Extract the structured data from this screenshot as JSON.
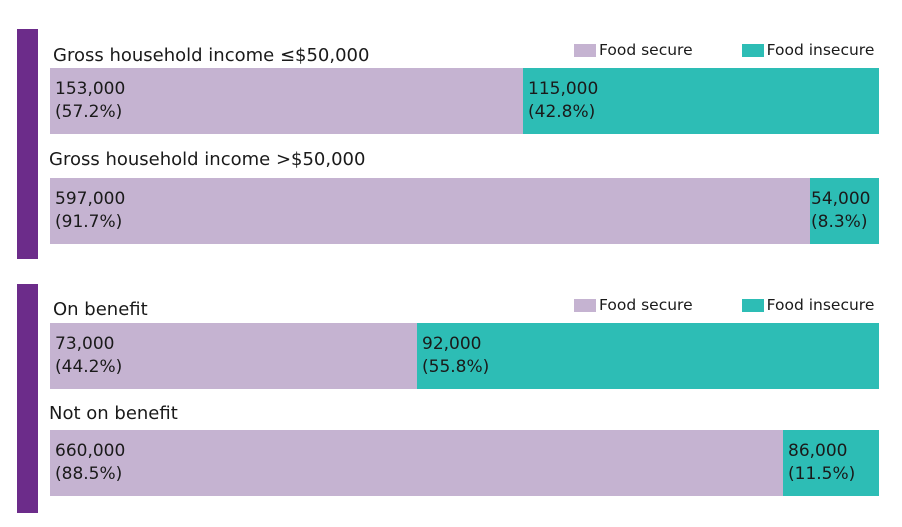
{
  "colors": {
    "accent": "#6c2c8a",
    "food_secure": "#c5b3d1",
    "food_insecure": "#2dbdb5"
  },
  "chart_data": [
    {
      "type": "bar",
      "stacked": true,
      "orientation": "horizontal",
      "legend": [
        "Food secure",
        "Food insecure"
      ],
      "legend_position": "top-right",
      "groups": [
        {
          "label": "Gross household income ≤$50,000",
          "values": [
            153000,
            115000
          ],
          "value_labels": [
            "153,000",
            "115,000"
          ],
          "percent_labels": [
            "(57.2%)",
            "(42.8%)"
          ]
        },
        {
          "label": "Gross household income >$50,000",
          "values": [
            597000,
            54000
          ],
          "value_labels": [
            "597,000",
            "54,000"
          ],
          "percent_labels": [
            "(91.7%)",
            "(8.3%)"
          ]
        }
      ]
    },
    {
      "type": "bar",
      "stacked": true,
      "orientation": "horizontal",
      "legend": [
        "Food secure",
        "Food insecure"
      ],
      "legend_position": "top-right",
      "groups": [
        {
          "label": "On benefit",
          "values": [
            73000,
            92000
          ],
          "value_labels": [
            "73,000",
            "92,000"
          ],
          "percent_labels": [
            "(44.2%)",
            "(55.8%)"
          ]
        },
        {
          "label": "Not on benefit",
          "values": [
            660000,
            86000
          ],
          "value_labels": [
            "660,000",
            "86,000"
          ],
          "percent_labels": [
            "(88.5%)",
            "(11.5%)"
          ]
        }
      ]
    }
  ]
}
